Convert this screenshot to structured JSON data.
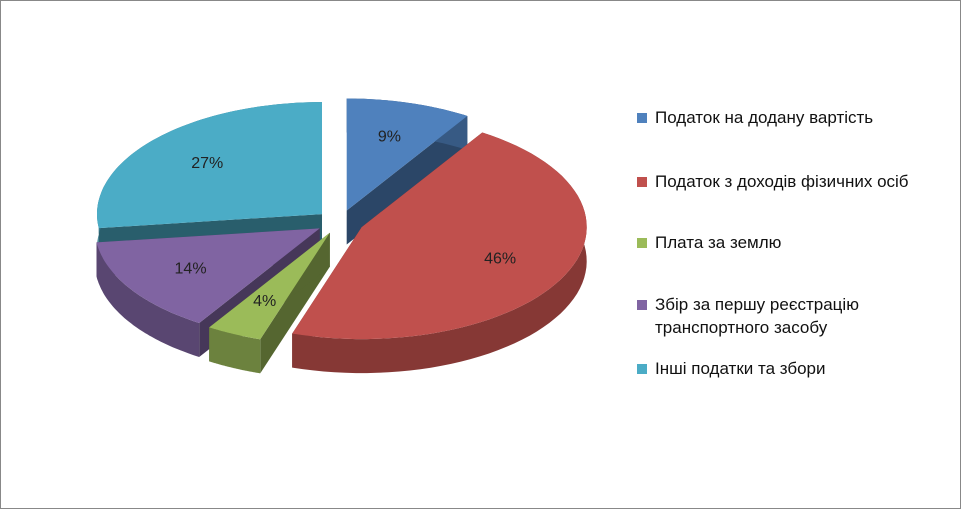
{
  "chart_data": {
    "type": "pie",
    "categories": [
      "Податок на додану вартість",
      "Податок з доходів фізичних осіб",
      "Плата за землю",
      "Збір за першу реєстрацію транспортного засобу",
      "Інші податки та збори"
    ],
    "values": [
      9,
      46,
      4,
      14,
      27
    ],
    "value_labels": [
      "9%",
      "46%",
      "4%",
      "14%",
      "27%"
    ],
    "colors": [
      "#4f81bd",
      "#c0504d",
      "#9bbb59",
      "#8064a2",
      "#4bacc6"
    ],
    "legend": "right"
  }
}
